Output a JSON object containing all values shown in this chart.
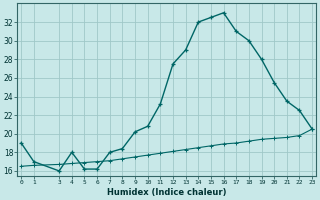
{
  "xlabel": "Humidex (Indice chaleur)",
  "bg_color": "#c8e8e8",
  "grid_color": "#a0c8c8",
  "line_color": "#006666",
  "hours": [
    0,
    1,
    3,
    4,
    5,
    6,
    7,
    8,
    9,
    10,
    11,
    12,
    13,
    14,
    15,
    16,
    17,
    18,
    19,
    20,
    21,
    22,
    23
  ],
  "humidex": [
    19.0,
    17.0,
    16.0,
    18.0,
    16.2,
    16.2,
    18.0,
    18.4,
    20.2,
    20.8,
    23.2,
    27.5,
    29.0,
    32.0,
    32.5,
    33.0,
    31.0,
    30.0,
    28.0,
    25.5,
    23.5,
    22.5,
    20.5
  ],
  "temp": [
    16.5,
    16.6,
    16.7,
    16.8,
    16.9,
    17.0,
    17.1,
    17.3,
    17.5,
    17.7,
    17.9,
    18.1,
    18.3,
    18.5,
    18.7,
    18.9,
    19.0,
    19.2,
    19.4,
    19.5,
    19.6,
    19.8,
    20.5
  ],
  "ylim": [
    15.5,
    34.0
  ],
  "yticks": [
    16,
    18,
    20,
    22,
    24,
    26,
    28,
    30,
    32
  ],
  "xticks": [
    0,
    1,
    3,
    4,
    5,
    6,
    7,
    8,
    9,
    10,
    11,
    12,
    13,
    14,
    15,
    16,
    17,
    18,
    19,
    20,
    21,
    22,
    23
  ],
  "xlim": [
    -0.3,
    23.3
  ]
}
